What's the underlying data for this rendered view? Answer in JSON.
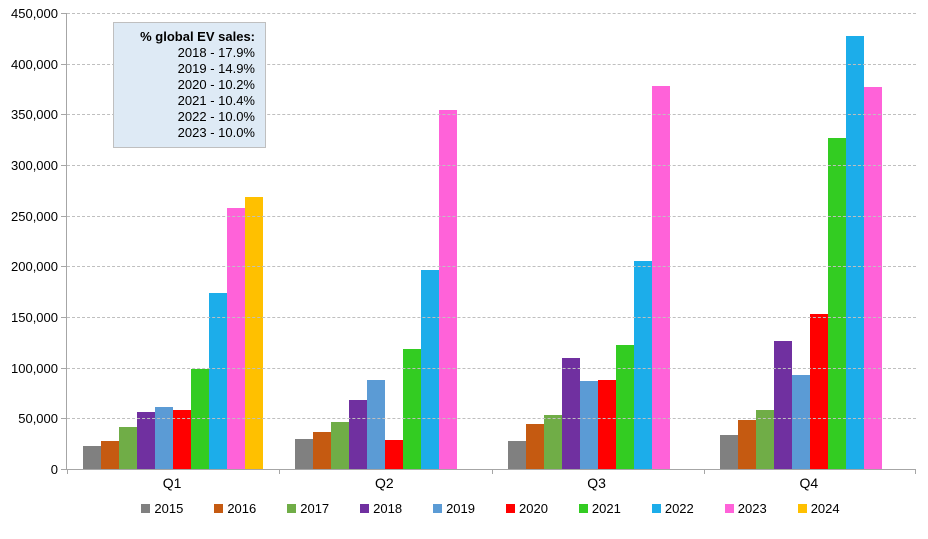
{
  "chart_data": {
    "type": "bar",
    "title": "",
    "xlabel": "",
    "ylabel": "",
    "categories": [
      "Q1",
      "Q2",
      "Q3",
      "Q4"
    ],
    "series": [
      {
        "name": "2015",
        "color": "#808080",
        "values": [
          23000,
          30000,
          27500,
          33500
        ]
      },
      {
        "name": "2016",
        "color": "#C55A11",
        "values": [
          27500,
          36500,
          44000,
          48000
        ]
      },
      {
        "name": "2017",
        "color": "#70AD47",
        "values": [
          41000,
          46500,
          53500,
          58000
        ]
      },
      {
        "name": "2018",
        "color": "#7030A0",
        "values": [
          56000,
          68500,
          110000,
          126500
        ]
      },
      {
        "name": "2019",
        "color": "#5B9BD5",
        "values": [
          61000,
          87500,
          87000,
          93000
        ]
      },
      {
        "name": "2020",
        "color": "#FF0000",
        "values": [
          58000,
          28500,
          87500,
          152500
        ]
      },
      {
        "name": "2021",
        "color": "#33CC22",
        "values": [
          98500,
          118000,
          122000,
          327000
        ]
      },
      {
        "name": "2022",
        "color": "#1CADEA",
        "values": [
          174000,
          196000,
          205000,
          427000
        ]
      },
      {
        "name": "2023",
        "color": "#FF62D9",
        "values": [
          258000,
          354000,
          378000,
          377000
        ]
      },
      {
        "name": "2024",
        "color": "#FFC000",
        "values": [
          268000,
          null,
          null,
          null
        ]
      }
    ],
    "ylim": [
      0,
      450000
    ],
    "ytick_step": 50000,
    "yticks": [
      "0",
      "50,000",
      "100,000",
      "150,000",
      "200,000",
      "250,000",
      "300,000",
      "350,000",
      "400,000",
      "450,000"
    ],
    "grid": "horizontal-dashed",
    "legend_position": "bottom",
    "annotation": {
      "heading": "% global EV sales:",
      "lines": [
        "2018 - 17.9%",
        "2019 - 14.9%",
        "2020 - 10.2%",
        "2021 - 10.4%",
        "2022 - 10.0%",
        "2023 - 10.0%"
      ]
    }
  },
  "colors": {
    "axis": "#A6A6A6",
    "gridline": "#BFBFBF",
    "annotation_fill": "#DEEAF5"
  }
}
